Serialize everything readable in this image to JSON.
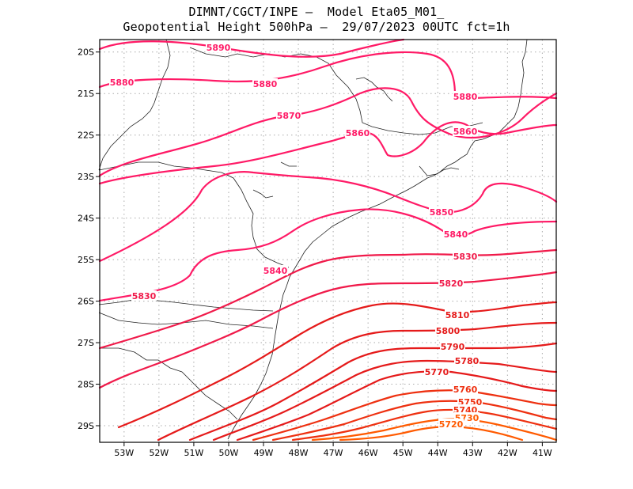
{
  "title": {
    "line1": "DIMNT/CGCT/INPE –  Model Eta05_M01_",
    "line2": "Geopotential Height 500hPa –  29/07/2023 00UTC fct=1h"
  },
  "axes": {
    "x_ticks": [
      "53W",
      "52W",
      "51W",
      "50W",
      "49W",
      "48W",
      "47W",
      "46W",
      "45W",
      "44W",
      "43W",
      "42W",
      "41W"
    ],
    "y_ticks": [
      "20S",
      "21S",
      "22S",
      "23S",
      "24S",
      "25S",
      "26S",
      "27S",
      "28S",
      "29S"
    ],
    "x_range_lon": [
      -53.7,
      -40.6
    ],
    "y_range_lat": [
      -19.7,
      -29.4
    ],
    "grid": "dotted"
  },
  "colors": {
    "pink": "#ff1a66",
    "red_pink": "#f01a4a",
    "red": "#e51a1a",
    "red_orange": "#ee3010",
    "orange": "#ff5a00",
    "border": "#222222",
    "grid": "#aaaaaa"
  },
  "contours": [
    {
      "value": 5890,
      "label": "5890",
      "color": "pink"
    },
    {
      "value": 5880,
      "label": "5880",
      "color": "pink"
    },
    {
      "value": 5870,
      "label": "5870",
      "color": "pink"
    },
    {
      "value": 5860,
      "label": "5860",
      "color": "pink"
    },
    {
      "value": 5850,
      "label": "5850",
      "color": "pink"
    },
    {
      "value": 5840,
      "label": "5840",
      "color": "pink"
    },
    {
      "value": 5830,
      "label": "5830",
      "color": "red_pink"
    },
    {
      "value": 5820,
      "label": "5820",
      "color": "red_pink"
    },
    {
      "value": 5810,
      "label": "5810",
      "color": "red"
    },
    {
      "value": 5800,
      "label": "5800",
      "color": "red"
    },
    {
      "value": 5790,
      "label": "5790",
      "color": "red"
    },
    {
      "value": 5780,
      "label": "5780",
      "color": "red"
    },
    {
      "value": 5770,
      "label": "5770",
      "color": "red"
    },
    {
      "value": 5760,
      "label": "5760",
      "color": "red_orange"
    },
    {
      "value": 5750,
      "label": "5750",
      "color": "red_orange"
    },
    {
      "value": 5740,
      "label": "5740",
      "color": "red_orange"
    },
    {
      "value": 5730,
      "label": "5730",
      "color": "orange"
    },
    {
      "value": 5720,
      "label": "5720",
      "color": "orange"
    }
  ]
}
